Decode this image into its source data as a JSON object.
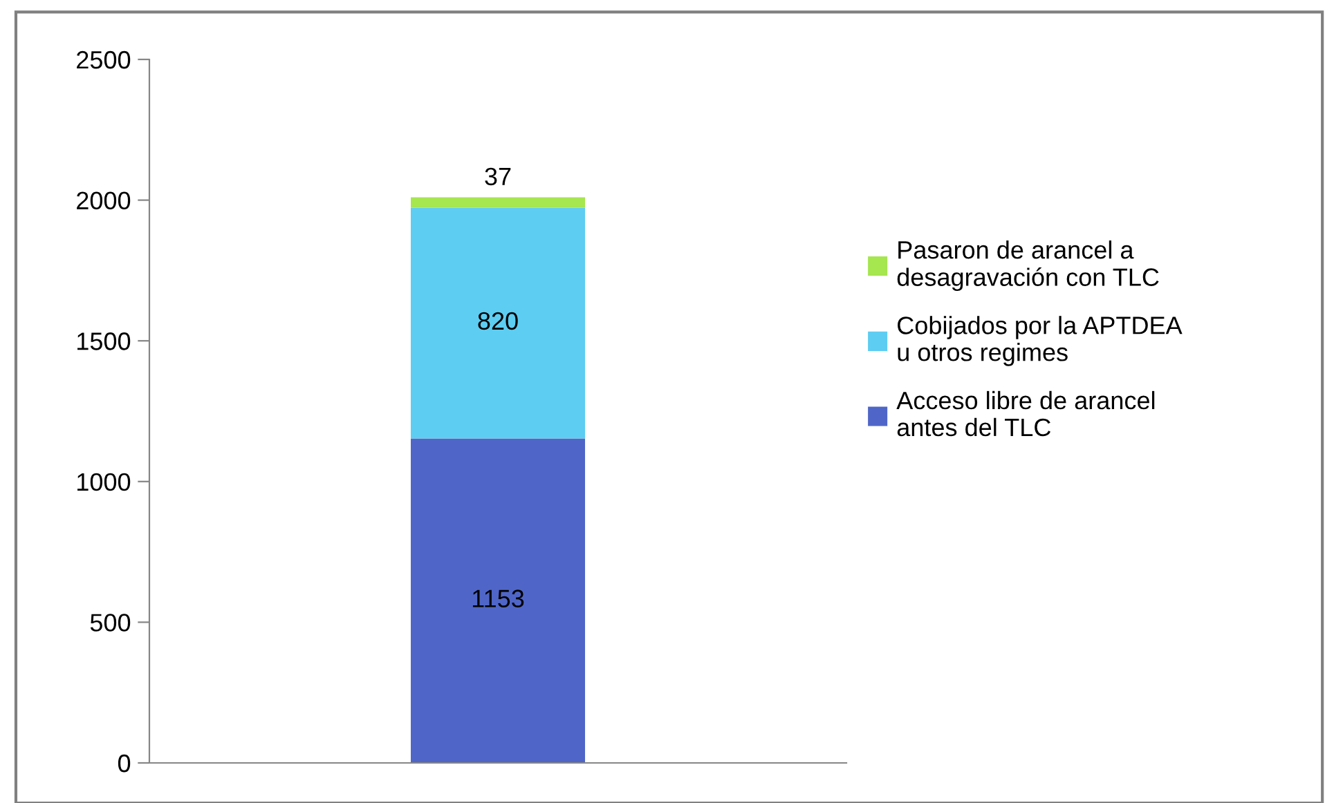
{
  "chart_data": {
    "type": "bar",
    "stacked": true,
    "categories": [
      null
    ],
    "series": [
      {
        "name": "Acceso libre de arancel antes del TLC",
        "color": "#4f66c8",
        "values": [
          1153
        ]
      },
      {
        "name": "Cobijados por la APTDEA u otros regimes",
        "color": "#5dcdf2",
        "values": [
          820
        ]
      },
      {
        "name": "Pasaron de arancel a desagravación con TLC",
        "color": "#a6e64f",
        "values": [
          37
        ]
      }
    ],
    "ylim": [
      0,
      2500
    ],
    "yticks": [
      0,
      500,
      1000,
      1500,
      2000,
      2500
    ],
    "data_labels": true,
    "legend": "right",
    "grid": false
  }
}
